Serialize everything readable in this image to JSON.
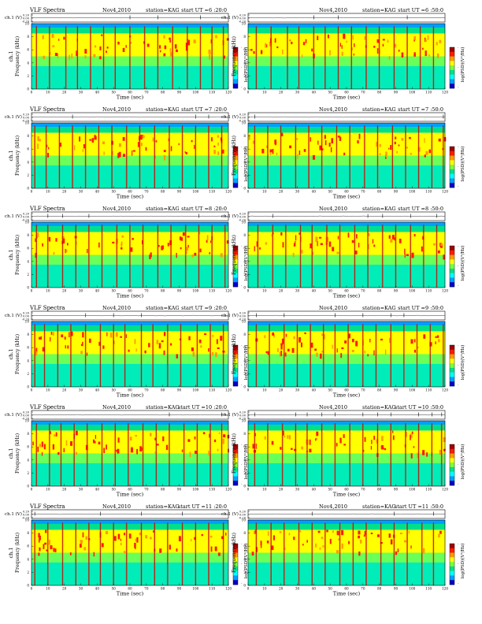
{
  "page": {
    "palette": [
      "#0000c8",
      "#00a0ff",
      "#00ffff",
      "#00e08a",
      "#7cff3c",
      "#ffff00",
      "#ff9a00",
      "#ff1a00",
      "#a00000"
    ]
  },
  "panel_labels": {
    "title_left": "VLF Spectra",
    "date_left": "Nov4,2010",
    "date_right": "Nov4,2010",
    "station": "station=KAG",
    "ch_axis_label": "ch.1 (V)",
    "ch_ticks": [
      "0.20",
      "0.00",
      "-0.20"
    ],
    "freq_axis_label_left": "ch.1",
    "freq_axis_label": "Frequency  (kHz)",
    "freq_ticks": [
      "0",
      "2",
      "4",
      "6",
      "8",
      "10"
    ],
    "time_ticks": [
      "0",
      "10",
      "20",
      "30",
      "40",
      "50",
      "60",
      "70",
      "80",
      "90",
      "100",
      "110",
      "120"
    ],
    "time_label": "Time (sec)",
    "colorbar_label": "log(PSD)(V²/Hz)",
    "colorbar_ticks": [
      "-",
      "-",
      "-"
    ]
  },
  "chart_data": [
    {
      "type": "heatmap",
      "start_ut": "start  UT =6 :20:0",
      "xlim": [
        0,
        120
      ],
      "ylim": [
        0,
        10
      ],
      "xlabel": "Time (sec)",
      "ylabel": "Frequency (kHz)",
      "band_khz": [
        5,
        8.5
      ],
      "spike_times_s": [
        3,
        11,
        21,
        28,
        36,
        44,
        51,
        60,
        69,
        77,
        86,
        95,
        103,
        110,
        117
      ]
    },
    {
      "type": "heatmap",
      "start_ut": "start  UT =6 :50:0",
      "xlim": [
        0,
        120
      ],
      "ylim": [
        0,
        10
      ],
      "xlabel": "Time (sec)",
      "ylabel": "Frequency (kHz)",
      "band_khz": [
        5,
        8.5
      ],
      "spike_times_s": [
        5,
        14,
        24,
        31,
        40,
        47,
        55,
        63,
        72,
        80,
        89,
        97,
        105,
        113
      ]
    },
    {
      "type": "heatmap",
      "start_ut": "start  UT =7 :20:0",
      "xlim": [
        0,
        120
      ],
      "ylim": [
        0,
        10
      ],
      "xlabel": "Time (sec)",
      "ylabel": "Frequency (kHz)",
      "band_khz": [
        5,
        8.5
      ],
      "spike_times_s": [
        2,
        9,
        17,
        25,
        33,
        41,
        49,
        58,
        66,
        75,
        84,
        92,
        100,
        108,
        116
      ]
    },
    {
      "type": "heatmap",
      "start_ut": "start  UT =7 :50:0",
      "xlim": [
        0,
        120
      ],
      "ylim": [
        0,
        10
      ],
      "xlabel": "Time (sec)",
      "ylabel": "Frequency (kHz)",
      "band_khz": [
        5,
        8.5
      ],
      "spike_times_s": [
        4,
        12,
        20,
        29,
        37,
        45,
        54,
        62,
        71,
        79,
        88,
        96,
        104,
        112,
        119
      ]
    },
    {
      "type": "heatmap",
      "start_ut": "start  UT =8 :20:0",
      "xlim": [
        0,
        120
      ],
      "ylim": [
        0,
        10
      ],
      "xlabel": "Time (sec)",
      "ylabel": "Frequency (kHz)",
      "band_khz": [
        5,
        8.5
      ],
      "spike_times_s": [
        3,
        10,
        19,
        27,
        35,
        43,
        52,
        60,
        68,
        77,
        85,
        94,
        102,
        110,
        118
      ]
    },
    {
      "type": "heatmap",
      "start_ut": "start  UT =8 :50:0",
      "xlim": [
        0,
        120
      ],
      "ylim": [
        0,
        10
      ],
      "xlabel": "Time (sec)",
      "ylabel": "Frequency (kHz)",
      "band_khz": [
        5,
        8.5
      ],
      "spike_times_s": [
        6,
        15,
        23,
        32,
        39,
        48,
        56,
        65,
        73,
        82,
        90,
        99,
        107,
        115
      ]
    },
    {
      "type": "heatmap",
      "start_ut": "start  UT =9 :20:0",
      "xlim": [
        0,
        120
      ],
      "ylim": [
        0,
        10
      ],
      "xlabel": "Time (sec)",
      "ylabel": "Frequency (kHz)",
      "band_khz": [
        5,
        8.5
      ],
      "spike_times_s": [
        2,
        8,
        16,
        24,
        33,
        42,
        50,
        57,
        67,
        74,
        83,
        91,
        101,
        109,
        117
      ]
    },
    {
      "type": "heatmap",
      "start_ut": "start  UT =9 :50:0",
      "xlim": [
        0,
        120
      ],
      "ylim": [
        0,
        10
      ],
      "xlabel": "Time (sec)",
      "ylabel": "Frequency (kHz)",
      "band_khz": [
        5,
        8.5
      ],
      "spike_times_s": [
        5,
        13,
        22,
        30,
        38,
        46,
        53,
        61,
        70,
        78,
        87,
        95,
        103,
        111,
        119
      ]
    },
    {
      "type": "heatmap",
      "start_ut": "start  UT =10 :20:0",
      "xlim": [
        0,
        120
      ],
      "ylim": [
        0,
        10
      ],
      "xlabel": "Time (sec)",
      "ylabel": "Frequency (kHz)",
      "band_khz": [
        5,
        8.5
      ],
      "spike_times_s": [
        3,
        11,
        18,
        26,
        34,
        43,
        51,
        59,
        68,
        76,
        84,
        93,
        101,
        109,
        116
      ]
    },
    {
      "type": "heatmap",
      "start_ut": "start  UT =10 :50:0",
      "xlim": [
        0,
        120
      ],
      "ylim": [
        0,
        10
      ],
      "xlabel": "Time (sec)",
      "ylabel": "Frequency (kHz)",
      "band_khz": [
        5,
        8.5
      ],
      "spike_times_s": [
        4,
        12,
        21,
        29,
        36,
        45,
        53,
        62,
        70,
        79,
        87,
        96,
        104,
        112,
        118
      ]
    },
    {
      "type": "heatmap",
      "start_ut": "start  UT =11 :20:0",
      "xlim": [
        0,
        120
      ],
      "ylim": [
        0,
        10
      ],
      "xlabel": "Time (sec)",
      "ylabel": "Frequency (kHz)",
      "band_khz": [
        5,
        8.5
      ],
      "spike_times_s": [
        2,
        10,
        19,
        27,
        35,
        42,
        50,
        58,
        67,
        75,
        83,
        92,
        100,
        108,
        117
      ]
    },
    {
      "type": "heatmap",
      "start_ut": "start  UT =11 :50:0",
      "xlim": [
        0,
        120
      ],
      "ylim": [
        0,
        10
      ],
      "xlabel": "Time (sec)",
      "ylabel": "Frequency (kHz)",
      "band_khz": [
        5,
        8.5
      ],
      "spike_times_s": [
        5,
        14,
        22,
        31,
        39,
        47,
        56,
        64,
        72,
        81,
        89,
        97,
        106,
        113
      ]
    }
  ]
}
